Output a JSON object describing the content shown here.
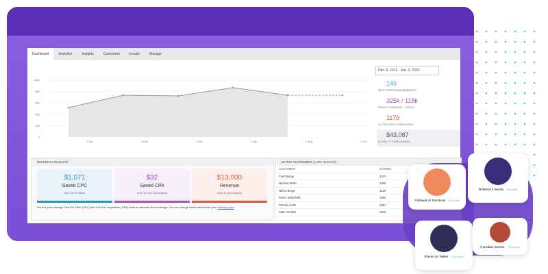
{
  "tabs": [
    "Dashboard",
    "Analytics",
    "Insights",
    "Customers",
    "Emails",
    "Manage"
  ],
  "chart": {
    "type": "line",
    "yticks": [
      0,
      200,
      400,
      600,
      800,
      1000
    ],
    "ylim": [
      0,
      1000
    ],
    "x_labels": [
      "1 Jan",
      "1 Feb",
      "1 Mar",
      "1 Apr",
      "1 May",
      "1 Jun"
    ],
    "categories": [
      null,
      null,
      null,
      null,
      null,
      null
    ],
    "series": [
      {
        "values": [
          518,
          735,
          723,
          867,
          735,
          null
        ],
        "color": "#999999"
      },
      {
        "values": [
          null,
          null,
          null,
          null,
          735,
          735
        ],
        "color": "#999999",
        "dashed": true
      }
    ]
  },
  "sidebar": {
    "date_range": "Dec. 5, 2019 - Jun. 2, 2020",
    "stats": [
      {
        "value": 149,
        "label": "NEW PROGRAM MEMBERS",
        "color": "#4aa8c8"
      },
      {
        "value": "325k / 118k",
        "label": "POINTS EARNED / SPENT",
        "color": "#a24fc2"
      },
      {
        "value": 1179,
        "label": "ACTIVITIES COMPLETED",
        "color": "#e0553a"
      },
      {
        "value": "$43,087",
        "label": "LOYALTY PURCHASES",
        "color": "#555555"
      }
    ]
  },
  "referral": {
    "title": "REFERRAL RESULTS",
    "cards": [
      {
        "value": "$1,071",
        "name": "Saved CPC",
        "from": "from 2678 visit(s)",
        "color": "#2b8fc0"
      },
      {
        "value": "$32",
        "name": "Saved CPA",
        "from": "from 16 new customer(s)",
        "color": "#a24fc2"
      },
      {
        "value": "$13,000",
        "name": "Revenue",
        "from": "from 40 purchase(s)",
        "color": "#e0553a"
      }
    ],
    "note": "We use your average Cost Per Click (CPC) and Cost Per Acquisition (CPA) costs to calculate these savings. You can change these values from your ",
    "link": "settings page",
    "end": "."
  },
  "customers": {
    "title": "ACTIVE CUSTOMERS (LAST 30 DAYS)",
    "columns": [
      "CUSTOMER",
      "EARNED"
    ],
    "rows": [
      [
        "Ciarri Berge",
        1427
      ],
      [
        "Nerissa Stalin",
        1300
      ],
      [
        "Nehra Berge",
        1220
      ],
      [
        "Pedro Satterfield",
        1082
      ],
      [
        "Priscilla Kuhn",
        1057
      ],
      [
        "Katie Gerlach",
        1020
      ]
    ]
  },
  "badges": [
    {
      "text": "Followed on Facebook",
      "points": "+50 points"
    },
    {
      "text": "Referred 3 friends",
      "points": "+50 points"
    },
    {
      "text": "Shared on Twitter",
      "points": "+100 points"
    },
    {
      "text": "5 product reviews",
      "points": "+100 points"
    }
  ]
}
